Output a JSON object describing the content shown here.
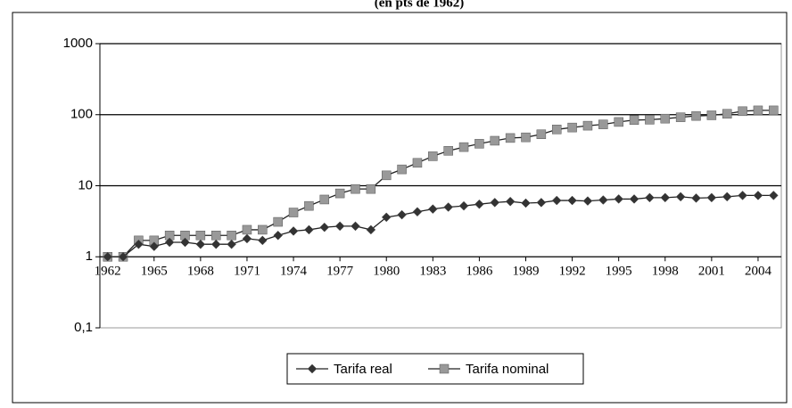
{
  "chart_data": {
    "type": "line",
    "title": "(en pts de 1962)",
    "x": [
      1962,
      1963,
      1964,
      1965,
      1966,
      1967,
      1968,
      1969,
      1970,
      1971,
      1972,
      1973,
      1974,
      1975,
      1976,
      1977,
      1978,
      1979,
      1980,
      1981,
      1982,
      1983,
      1984,
      1985,
      1986,
      1987,
      1988,
      1989,
      1990,
      1991,
      1992,
      1993,
      1994,
      1995,
      1996,
      1997,
      1998,
      1999,
      2000,
      2001,
      2002,
      2003,
      2004,
      2005
    ],
    "xlim": [
      1961.5,
      2005.5
    ],
    "xticks": [
      1962,
      1965,
      1968,
      1971,
      1974,
      1977,
      1980,
      1983,
      1986,
      1989,
      1992,
      1995,
      1998,
      2001,
      2004
    ],
    "ylim": [
      0.1,
      1000
    ],
    "log_scale": true,
    "grid": true,
    "yticks": [
      {
        "value": 0.1,
        "label": "0,1"
      },
      1,
      10,
      100,
      1000
    ],
    "legend": "bottom",
    "series": [
      {
        "name": "Tarifa real",
        "color": "#333333",
        "marker": "diamond",
        "values": [
          1,
          1,
          1.5,
          1.4,
          1.6,
          1.6,
          1.5,
          1.5,
          1.5,
          1.8,
          1.7,
          2.0,
          2.3,
          2.4,
          2.6,
          2.7,
          2.7,
          2.4,
          3.6,
          3.9,
          4.3,
          4.7,
          5.0,
          5.2,
          5.5,
          5.8,
          6.0,
          5.7,
          5.8,
          6.2,
          6.2,
          6.1,
          6.3,
          6.5,
          6.5,
          6.8,
          6.8,
          7.0,
          6.7,
          6.8,
          7.0,
          7.3,
          7.3,
          7.3
        ]
      },
      {
        "name": "Tarifa nominal",
        "color": "#999999",
        "marker": "square",
        "values": [
          1,
          1,
          1.7,
          1.7,
          2,
          2,
          2,
          2,
          2,
          2.4,
          2.4,
          3.1,
          4.2,
          5.2,
          6.4,
          7.8,
          9,
          9,
          14,
          17,
          21,
          26,
          31,
          35,
          39,
          43,
          47,
          48,
          53,
          62,
          66,
          70,
          73,
          79,
          84,
          85,
          88,
          92,
          96,
          98,
          103,
          112,
          115,
          115
        ]
      }
    ]
  }
}
